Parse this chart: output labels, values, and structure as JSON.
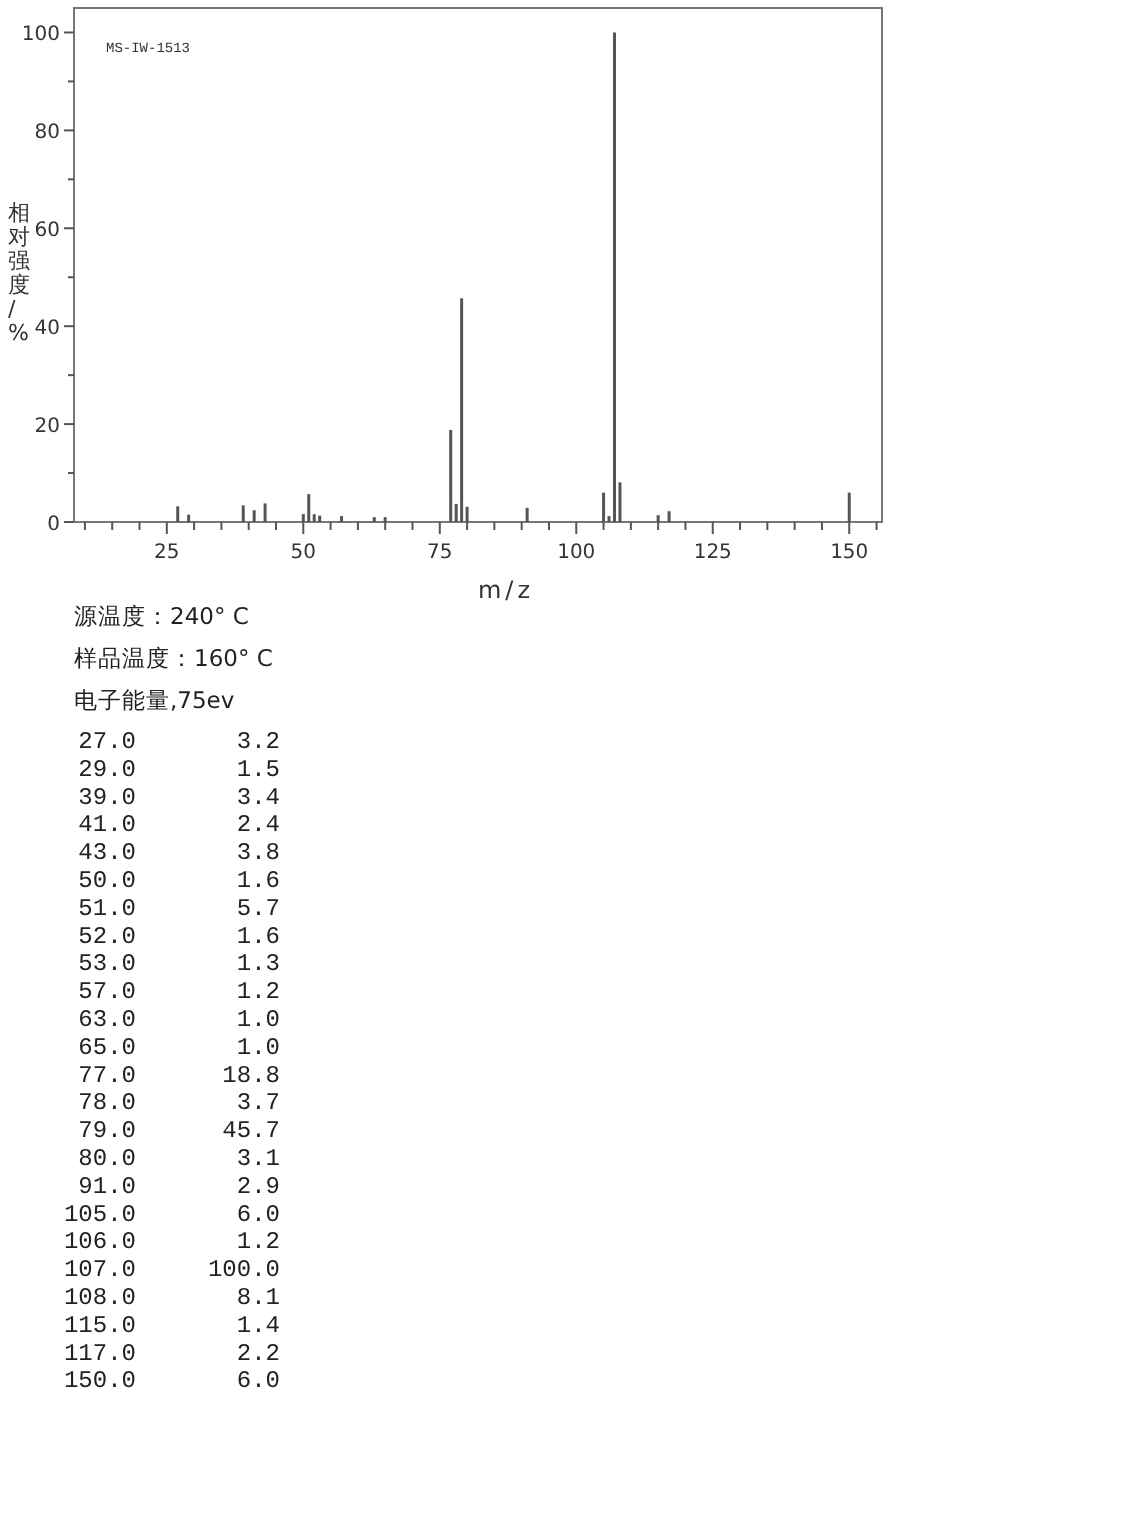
{
  "chart_data": {
    "type": "bar",
    "xlabel": "m/z",
    "ylabel": "相对强度/%",
    "x": [
      27,
      29,
      39,
      41,
      43,
      50,
      51,
      52,
      53,
      57,
      63,
      65,
      77,
      78,
      79,
      80,
      91,
      105,
      106,
      107,
      108,
      115,
      117,
      150
    ],
    "values": [
      3.2,
      1.5,
      3.4,
      2.4,
      3.8,
      1.6,
      5.7,
      1.6,
      1.3,
      1.2,
      1.0,
      1.0,
      18.8,
      3.7,
      45.7,
      3.1,
      2.9,
      6.0,
      1.2,
      100.0,
      8.1,
      1.4,
      2.2,
      6.0
    ],
    "color": "#555555",
    "xlim": [
      8,
      156
    ],
    "ylim": [
      0,
      105
    ],
    "xticks": [
      {
        "value": 10,
        "label": null
      },
      {
        "value": 15,
        "label": null
      },
      {
        "value": 20,
        "label": null
      },
      25,
      {
        "value": 30,
        "label": null
      },
      {
        "value": 35,
        "label": null
      },
      {
        "value": 40,
        "label": null
      },
      {
        "value": 45,
        "label": null
      },
      50,
      {
        "value": 55,
        "label": null
      },
      {
        "value": 60,
        "label": null
      },
      {
        "value": 65,
        "label": null
      },
      {
        "value": 70,
        "label": null
      },
      75,
      {
        "value": 80,
        "label": null
      },
      {
        "value": 85,
        "label": null
      },
      {
        "value": 90,
        "label": null
      },
      {
        "value": 95,
        "label": null
      },
      100,
      {
        "value": 105,
        "label": null
      },
      {
        "value": 110,
        "label": null
      },
      {
        "value": 115,
        "label": null
      },
      {
        "value": 120,
        "label": null
      },
      125,
      {
        "value": 130,
        "label": null
      },
      {
        "value": 135,
        "label": null
      },
      {
        "value": 140,
        "label": null
      },
      {
        "value": 145,
        "label": null
      },
      150,
      {
        "value": 155,
        "label": null
      }
    ],
    "yticks": [
      0,
      {
        "value": 10,
        "label": null
      },
      20,
      {
        "value": 30,
        "label": null
      },
      40,
      {
        "value": 50,
        "label": null
      },
      60,
      {
        "value": 70,
        "label": null
      },
      80,
      {
        "value": 90,
        "label": null
      },
      100
    ],
    "grid": false,
    "annotations": [
      "MS-IW-1513",
      "源温度：240° C",
      "样品温度：160° C",
      "电子能量,75ev",
      " 27.0       3.2",
      " 29.0       1.5",
      " 39.0       3.4",
      " 41.0       2.4",
      " 43.0       3.8",
      " 50.0       1.6",
      " 51.0       5.7",
      " 52.0       1.6",
      " 53.0       1.3",
      " 57.0       1.2",
      " 63.0       1.0",
      " 65.0       1.0",
      " 77.0      18.8",
      " 78.0       3.7",
      " 79.0      45.7",
      " 80.0       3.1",
      " 91.0       2.9",
      "105.0       6.0",
      "106.0       1.2",
      "107.0     100.0",
      "108.0       8.1",
      "115.0       1.4",
      "117.0       2.2",
      "150.0       6.0"
    ]
  }
}
